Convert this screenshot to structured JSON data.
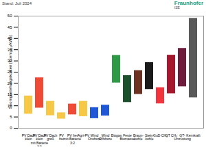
{
  "chart_data": {
    "type": "floating_bar",
    "subtitle": "Stand: Juli 2024",
    "annotations": [
      "Fraunhofer",
      "ISE"
    ],
    "y_label": "Stromgestehungskosten [€cent₂₀₂₄/kWh]",
    "categories": [
      "PV Dach\nklein",
      "PV Dach\nklein\nmit Batterie\n1:1",
      "PV Dach\ngroß",
      "PV\nfrei",
      "PV frei\nmit Batterie\n3:2",
      "Agri-PV",
      "Wind\nOnshore",
      "Wind\nOffshore",
      "Biogas",
      "Feste\nBiomasse",
      "Braun-\nkohle",
      "Stein-\nkohle",
      "GuD CH₄",
      "GT CH₄",
      "GT-\nUmrüstung",
      "Kernkraft"
    ],
    "low": [
      6.3,
      9.0,
      5.6,
      4.1,
      6.0,
      5.2,
      4.3,
      5.5,
      20.2,
      11.5,
      15.1,
      17.3,
      10.9,
      15.4,
      18.5,
      13.6
    ],
    "high": [
      14.4,
      22.5,
      12.0,
      6.9,
      10.8,
      12.0,
      9.2,
      10.3,
      32.5,
      23.5,
      25.7,
      29.3,
      18.1,
      32.6,
      35.6,
      49.0
    ],
    "colors": [
      "#f6c846",
      "#ee4a36",
      "#f6c846",
      "#f6c846",
      "#ee4a36",
      "#f6c846",
      "#1f57d6",
      "#1f57d6",
      "#2f9a45",
      "#1c4f2c",
      "#6c3321",
      "#1a1a1a",
      "#f2343f",
      "#a4172c",
      "#6f1b3c",
      "#595959"
    ],
    "ylim": [
      0,
      50
    ],
    "yticks": [
      0,
      5,
      10,
      15,
      20,
      25,
      30,
      35,
      40,
      45,
      50
    ],
    "grid": false
  }
}
